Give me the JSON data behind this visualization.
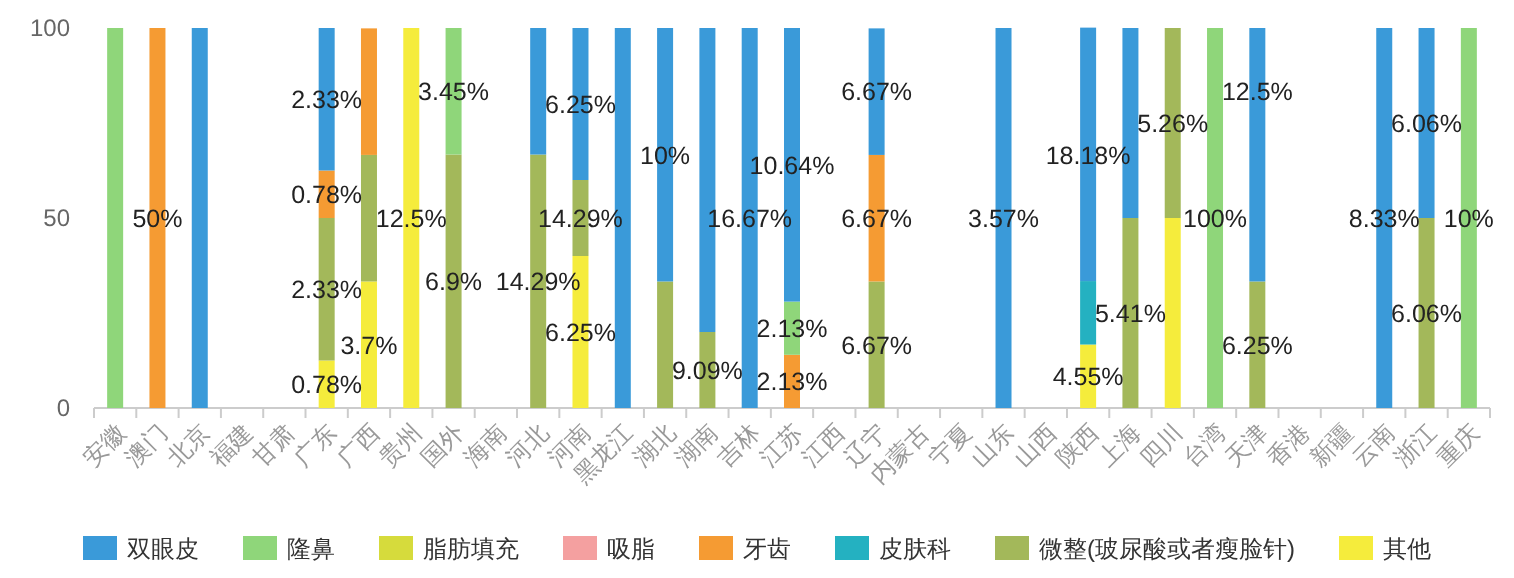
{
  "chart_data": {
    "type": "bar",
    "stacked": true,
    "legend": "bottom",
    "ylim": [
      0,
      100
    ],
    "yticks": [
      0,
      50,
      100
    ],
    "categories": [
      "安徽",
      "澳门",
      "北京",
      "福建",
      "甘肃",
      "广东",
      "广西",
      "贵州",
      "国外",
      "海南",
      "河北",
      "河南",
      "黑龙江",
      "湖北",
      "湖南",
      "吉林",
      "江苏",
      "江西",
      "辽宁",
      "内蒙古",
      "宁夏",
      "山东",
      "山西",
      "陕西",
      "上海",
      "四川",
      "台湾",
      "天津",
      "香港",
      "新疆",
      "云南",
      "浙江",
      "重庆"
    ],
    "series": [
      {
        "name": "其他",
        "color": "#f5ec3c",
        "values": [
          null,
          null,
          null,
          null,
          null,
          12.5,
          33.3,
          100,
          null,
          null,
          null,
          40,
          null,
          null,
          null,
          null,
          null,
          null,
          null,
          null,
          null,
          null,
          null,
          16.7,
          null,
          50,
          null,
          null,
          null,
          null,
          null,
          null,
          null
        ]
      },
      {
        "name": "微整(玻尿酸或者瘦脸针)",
        "color": "#a3b85a",
        "values": [
          null,
          null,
          null,
          null,
          null,
          37.5,
          33.3,
          null,
          66.7,
          null,
          66.7,
          20,
          null,
          33.3,
          20,
          null,
          null,
          null,
          33.3,
          null,
          null,
          null,
          null,
          null,
          50,
          50,
          null,
          33.3,
          null,
          null,
          null,
          50,
          null
        ]
      },
      {
        "name": "皮肤科",
        "color": "#24b1c1",
        "values": [
          null,
          null,
          null,
          null,
          null,
          null,
          null,
          null,
          null,
          null,
          null,
          null,
          null,
          null,
          null,
          null,
          null,
          null,
          null,
          null,
          null,
          null,
          null,
          16.7,
          null,
          null,
          null,
          null,
          null,
          null,
          null,
          null,
          null
        ]
      },
      {
        "name": "牙齿",
        "color": "#f59b33",
        "values": [
          null,
          100,
          null,
          null,
          null,
          12.5,
          33.3,
          null,
          null,
          null,
          null,
          null,
          null,
          null,
          null,
          null,
          14,
          null,
          33.3,
          null,
          null,
          null,
          null,
          null,
          null,
          null,
          null,
          null,
          null,
          null,
          null,
          null,
          null
        ]
      },
      {
        "name": "吸脂",
        "color": "#f4a0a0",
        "values": [
          null,
          null,
          null,
          null,
          null,
          null,
          null,
          null,
          null,
          null,
          null,
          null,
          null,
          null,
          null,
          null,
          null,
          null,
          null,
          null,
          null,
          null,
          null,
          null,
          null,
          null,
          null,
          null,
          null,
          null,
          null,
          null,
          null
        ]
      },
      {
        "name": "脂肪填充",
        "color": "#d6db3c",
        "values": [
          null,
          null,
          null,
          null,
          null,
          null,
          null,
          null,
          null,
          null,
          null,
          null,
          null,
          null,
          null,
          null,
          null,
          null,
          null,
          null,
          null,
          null,
          null,
          null,
          null,
          null,
          null,
          null,
          null,
          null,
          null,
          null,
          null
        ]
      },
      {
        "name": "隆鼻",
        "color": "#8fd67a",
        "values": [
          100,
          null,
          null,
          null,
          null,
          null,
          null,
          null,
          33.3,
          null,
          null,
          null,
          null,
          null,
          null,
          null,
          14,
          null,
          null,
          null,
          null,
          null,
          null,
          null,
          null,
          null,
          100,
          null,
          null,
          null,
          null,
          null,
          100
        ]
      },
      {
        "name": "双眼皮",
        "color": "#3a9ad9",
        "values": [
          null,
          null,
          100,
          null,
          null,
          37.5,
          null,
          null,
          null,
          null,
          33.3,
          40,
          100,
          66.7,
          80,
          100,
          72,
          null,
          33.3,
          null,
          null,
          100,
          null,
          66.7,
          50,
          null,
          null,
          66.7,
          null,
          null,
          100,
          50,
          null
        ]
      }
    ],
    "annotations": [
      {
        "text": "0.78%",
        "x": "广东",
        "y": 6.3
      },
      {
        "text": "3.7%",
        "x": "广西",
        "y": 16.7
      },
      {
        "text": "12.5%",
        "x": "贵州",
        "y": 50
      },
      {
        "text": "6.25%",
        "x": "河南",
        "y": 20
      },
      {
        "text": "4.55%",
        "x": "陕西",
        "y": 8.4
      },
      {
        "text": "2.33%",
        "x": "广东",
        "y": 31.3
      },
      {
        "text": "6.9%",
        "x": "国外",
        "y": 33.3
      },
      {
        "text": "14.29%",
        "x": "河北",
        "y": 33.3
      },
      {
        "text": "14.29%",
        "x": "河南",
        "y": 50
      },
      {
        "text": "9.09%",
        "x": "湖南",
        "y": 10
      },
      {
        "text": "6.67%",
        "x": "辽宁",
        "y": 16.7
      },
      {
        "text": "5.41%",
        "x": "上海",
        "y": 25
      },
      {
        "text": "5.26%",
        "x": "四川",
        "y": 75
      },
      {
        "text": "6.25%",
        "x": "天津",
        "y": 16.7
      },
      {
        "text": "6.06%",
        "x": "浙江",
        "y": 25
      },
      {
        "text": "50%",
        "x": "澳门",
        "y": 50
      },
      {
        "text": "0.78%",
        "x": "广东",
        "y": 56.3
      },
      {
        "text": "2.13%",
        "x": "江苏",
        "y": 7
      },
      {
        "text": "6.67%",
        "x": "辽宁",
        "y": 50
      },
      {
        "text": "3.45%",
        "x": "国外",
        "y": 83.3
      },
      {
        "text": "2.13%",
        "x": "江苏",
        "y": 21
      },
      {
        "text": "100%",
        "x": "台湾",
        "y": 50
      },
      {
        "text": "10%",
        "x": "重庆",
        "y": 50
      },
      {
        "text": "2.33%",
        "x": "广东",
        "y": 81.3
      },
      {
        "text": "6.25%",
        "x": "河南",
        "y": 80
      },
      {
        "text": "10%",
        "x": "湖北",
        "y": 66.7
      },
      {
        "text": "16.67%",
        "x": "吉林",
        "y": 50
      },
      {
        "text": "10.64%",
        "x": "江苏",
        "y": 64
      },
      {
        "text": "6.67%",
        "x": "辽宁",
        "y": 83.3
      },
      {
        "text": "3.57%",
        "x": "山东",
        "y": 50
      },
      {
        "text": "18.18%",
        "x": "陕西",
        "y": 66.7
      },
      {
        "text": "12.5%",
        "x": "天津",
        "y": 83.3
      },
      {
        "text": "8.33%",
        "x": "云南",
        "y": 50
      },
      {
        "text": "6.06%",
        "x": "浙江",
        "y": 75
      }
    ]
  }
}
